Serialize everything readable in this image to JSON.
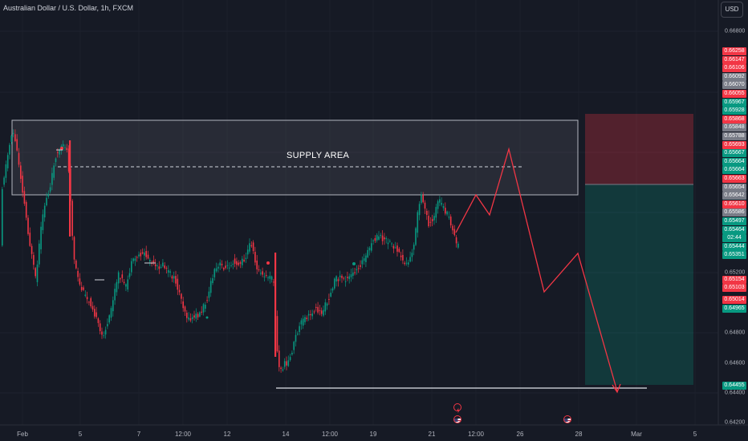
{
  "chart_title": "Australian Dollar / U.S. Dollar, 1h, FXCM",
  "currency_button": "USD",
  "supply_label": "SUPPLY AREA",
  "axis_prices": [
    "0.66800",
    "0.65200",
    "0.64800",
    "0.64600",
    "0.64400",
    "0.64200"
  ],
  "price_badges": [
    {
      "text": "0.66258",
      "color": "#f23645"
    },
    {
      "text": "0.66147",
      "color": "#f23645"
    },
    {
      "text": "0.66106",
      "color": "#f23645"
    },
    {
      "text": "0.66092",
      "color": "#787b86"
    },
    {
      "text": "0.66070",
      "color": "#787b86"
    },
    {
      "text": "0.66055",
      "color": "#f23645"
    },
    {
      "text": "0.65967",
      "color": "#089981"
    },
    {
      "text": "0.65928",
      "color": "#089981"
    },
    {
      "text": "0.65868",
      "color": "#f23645"
    },
    {
      "text": "0.65848",
      "color": "#787b86"
    },
    {
      "text": "0.65788",
      "color": "#787b86"
    },
    {
      "text": "0.65693",
      "color": "#f23645"
    },
    {
      "text": "0.65667",
      "color": "#089981"
    },
    {
      "text": "0.65664",
      "color": "#089981"
    },
    {
      "text": "0.65664",
      "color": "#089981"
    },
    {
      "text": "0.65663",
      "color": "#f23645"
    },
    {
      "text": "0.65654",
      "color": "#787b86"
    },
    {
      "text": "0.65642",
      "color": "#787b86"
    },
    {
      "text": "0.65610",
      "color": "#f23645"
    },
    {
      "text": "0.65586",
      "color": "#787b86"
    },
    {
      "text": "0.65497",
      "color": "#089981"
    },
    {
      "text": "0.65464",
      "color": "#089981"
    },
    {
      "text": "02:44",
      "color": "#089981"
    },
    {
      "text": "0.65444",
      "color": "#089981"
    },
    {
      "text": "0.65351",
      "color": "#089981"
    },
    {
      "text": "0.65154",
      "color": "#f23645"
    },
    {
      "text": "0.65103",
      "color": "#f23645"
    },
    {
      "text": "0.65014",
      "color": "#f23645"
    },
    {
      "text": "0.64965",
      "color": "#089981"
    },
    {
      "text": "0.64455",
      "color": "#089981"
    }
  ],
  "x_labels": [
    "Feb",
    "5",
    "7",
    "12:00",
    "12",
    "14",
    "12:00",
    "19",
    "21",
    "12:00",
    "26",
    "28",
    "Mar",
    "5"
  ],
  "colors": {
    "background": "#161a25",
    "bull": "#089981",
    "bear": "#f23645",
    "projection": "#f23645",
    "stop_zone": "#f23645",
    "target_zone": "#089981"
  },
  "icons": [
    "lightning-icon",
    "us-flag-icon",
    "us-flag-icon"
  ]
}
